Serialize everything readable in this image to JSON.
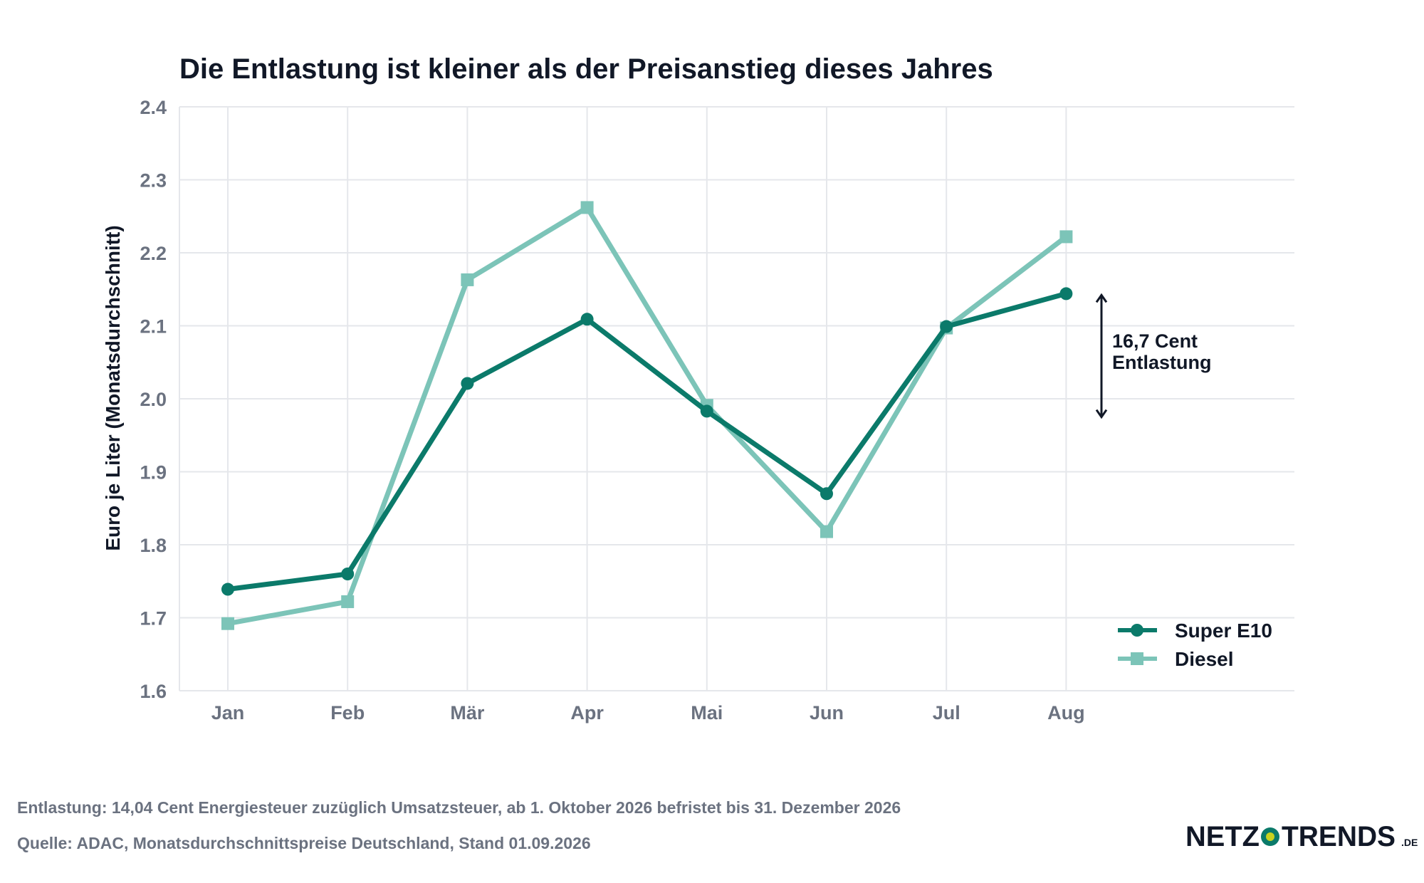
{
  "chart_data": {
    "type": "line",
    "title": "Die Entlastung ist kleiner als der Preisanstieg dieses Jahres",
    "xlabel": "",
    "ylabel": "Euro je Liter (Monatsdurchschnitt)",
    "categories": [
      "Jan",
      "Feb",
      "Mär",
      "Apr",
      "Mai",
      "Jun",
      "Jul",
      "Aug"
    ],
    "ylim": [
      1.6,
      2.4
    ],
    "yticks": [
      "1.6",
      "1.7",
      "1.8",
      "1.9",
      "2.0",
      "2.1",
      "2.2",
      "2.3",
      "2.4"
    ],
    "grid": true,
    "legend_position": "bottom-right",
    "series": [
      {
        "name": "Super E10",
        "marker": "circle",
        "color": "#0b7a6a",
        "values": [
          1.739,
          1.76,
          2.021,
          2.109,
          1.983,
          1.87,
          2.099,
          2.144
        ]
      },
      {
        "name": "Diesel",
        "marker": "square",
        "color": "#7cc4b8",
        "values": [
          1.692,
          1.722,
          2.163,
          2.262,
          1.991,
          1.818,
          2.097,
          2.222
        ]
      }
    ],
    "annotation": {
      "lines": [
        "16,7 Cent",
        "Entlastung"
      ],
      "from": 2.144,
      "to": 1.977
    }
  },
  "footer": {
    "note": "Entlastung: 14,04 Cent Energiesteuer zuzüglich Umsatzsteuer, ab 1. Oktober 2026 befristet bis 31. Dezember 2026",
    "source": "Quelle: ADAC, Monatsdurchschnittspreise Deutschland, Stand 01.09.2026"
  },
  "brand": {
    "left": "NETZ",
    "right": "TRENDS",
    "tld": ".DE",
    "dot_color": "#c9d21f",
    "ring_color": "#0b7a6a"
  }
}
